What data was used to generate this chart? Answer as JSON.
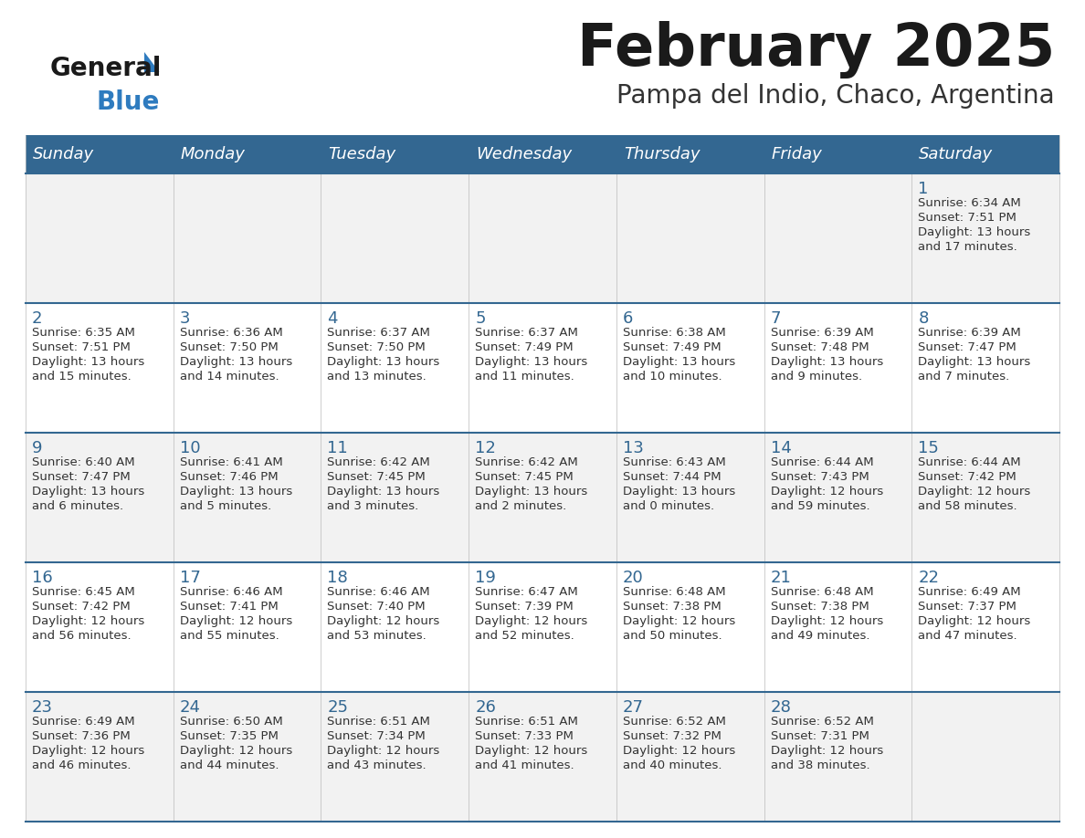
{
  "title": "February 2025",
  "subtitle": "Pampa del Indio, Chaco, Argentina",
  "days_of_week": [
    "Sunday",
    "Monday",
    "Tuesday",
    "Wednesday",
    "Thursday",
    "Friday",
    "Saturday"
  ],
  "header_bg": "#336791",
  "header_text_color": "#ffffff",
  "row_bg_odd": "#f2f2f2",
  "row_bg_even": "#ffffff",
  "separator_color": "#336791",
  "day_number_color": "#336791",
  "info_text_color": "#333333",
  "title_color": "#1a1a1a",
  "subtitle_color": "#333333",
  "logo_general_color": "#1a1a1a",
  "logo_blue_color": "#2e7bbf",
  "logo_triangle_color": "#2e7bbf",
  "weeks": [
    [
      {
        "day": null,
        "info": ""
      },
      {
        "day": null,
        "info": ""
      },
      {
        "day": null,
        "info": ""
      },
      {
        "day": null,
        "info": ""
      },
      {
        "day": null,
        "info": ""
      },
      {
        "day": null,
        "info": ""
      },
      {
        "day": 1,
        "info": "Sunrise: 6:34 AM\nSunset: 7:51 PM\nDaylight: 13 hours\nand 17 minutes."
      }
    ],
    [
      {
        "day": 2,
        "info": "Sunrise: 6:35 AM\nSunset: 7:51 PM\nDaylight: 13 hours\nand 15 minutes."
      },
      {
        "day": 3,
        "info": "Sunrise: 6:36 AM\nSunset: 7:50 PM\nDaylight: 13 hours\nand 14 minutes."
      },
      {
        "day": 4,
        "info": "Sunrise: 6:37 AM\nSunset: 7:50 PM\nDaylight: 13 hours\nand 13 minutes."
      },
      {
        "day": 5,
        "info": "Sunrise: 6:37 AM\nSunset: 7:49 PM\nDaylight: 13 hours\nand 11 minutes."
      },
      {
        "day": 6,
        "info": "Sunrise: 6:38 AM\nSunset: 7:49 PM\nDaylight: 13 hours\nand 10 minutes."
      },
      {
        "day": 7,
        "info": "Sunrise: 6:39 AM\nSunset: 7:48 PM\nDaylight: 13 hours\nand 9 minutes."
      },
      {
        "day": 8,
        "info": "Sunrise: 6:39 AM\nSunset: 7:47 PM\nDaylight: 13 hours\nand 7 minutes."
      }
    ],
    [
      {
        "day": 9,
        "info": "Sunrise: 6:40 AM\nSunset: 7:47 PM\nDaylight: 13 hours\nand 6 minutes."
      },
      {
        "day": 10,
        "info": "Sunrise: 6:41 AM\nSunset: 7:46 PM\nDaylight: 13 hours\nand 5 minutes."
      },
      {
        "day": 11,
        "info": "Sunrise: 6:42 AM\nSunset: 7:45 PM\nDaylight: 13 hours\nand 3 minutes."
      },
      {
        "day": 12,
        "info": "Sunrise: 6:42 AM\nSunset: 7:45 PM\nDaylight: 13 hours\nand 2 minutes."
      },
      {
        "day": 13,
        "info": "Sunrise: 6:43 AM\nSunset: 7:44 PM\nDaylight: 13 hours\nand 0 minutes."
      },
      {
        "day": 14,
        "info": "Sunrise: 6:44 AM\nSunset: 7:43 PM\nDaylight: 12 hours\nand 59 minutes."
      },
      {
        "day": 15,
        "info": "Sunrise: 6:44 AM\nSunset: 7:42 PM\nDaylight: 12 hours\nand 58 minutes."
      }
    ],
    [
      {
        "day": 16,
        "info": "Sunrise: 6:45 AM\nSunset: 7:42 PM\nDaylight: 12 hours\nand 56 minutes."
      },
      {
        "day": 17,
        "info": "Sunrise: 6:46 AM\nSunset: 7:41 PM\nDaylight: 12 hours\nand 55 minutes."
      },
      {
        "day": 18,
        "info": "Sunrise: 6:46 AM\nSunset: 7:40 PM\nDaylight: 12 hours\nand 53 minutes."
      },
      {
        "day": 19,
        "info": "Sunrise: 6:47 AM\nSunset: 7:39 PM\nDaylight: 12 hours\nand 52 minutes."
      },
      {
        "day": 20,
        "info": "Sunrise: 6:48 AM\nSunset: 7:38 PM\nDaylight: 12 hours\nand 50 minutes."
      },
      {
        "day": 21,
        "info": "Sunrise: 6:48 AM\nSunset: 7:38 PM\nDaylight: 12 hours\nand 49 minutes."
      },
      {
        "day": 22,
        "info": "Sunrise: 6:49 AM\nSunset: 7:37 PM\nDaylight: 12 hours\nand 47 minutes."
      }
    ],
    [
      {
        "day": 23,
        "info": "Sunrise: 6:49 AM\nSunset: 7:36 PM\nDaylight: 12 hours\nand 46 minutes."
      },
      {
        "day": 24,
        "info": "Sunrise: 6:50 AM\nSunset: 7:35 PM\nDaylight: 12 hours\nand 44 minutes."
      },
      {
        "day": 25,
        "info": "Sunrise: 6:51 AM\nSunset: 7:34 PM\nDaylight: 12 hours\nand 43 minutes."
      },
      {
        "day": 26,
        "info": "Sunrise: 6:51 AM\nSunset: 7:33 PM\nDaylight: 12 hours\nand 41 minutes."
      },
      {
        "day": 27,
        "info": "Sunrise: 6:52 AM\nSunset: 7:32 PM\nDaylight: 12 hours\nand 40 minutes."
      },
      {
        "day": 28,
        "info": "Sunrise: 6:52 AM\nSunset: 7:31 PM\nDaylight: 12 hours\nand 38 minutes."
      },
      {
        "day": null,
        "info": ""
      }
    ]
  ]
}
